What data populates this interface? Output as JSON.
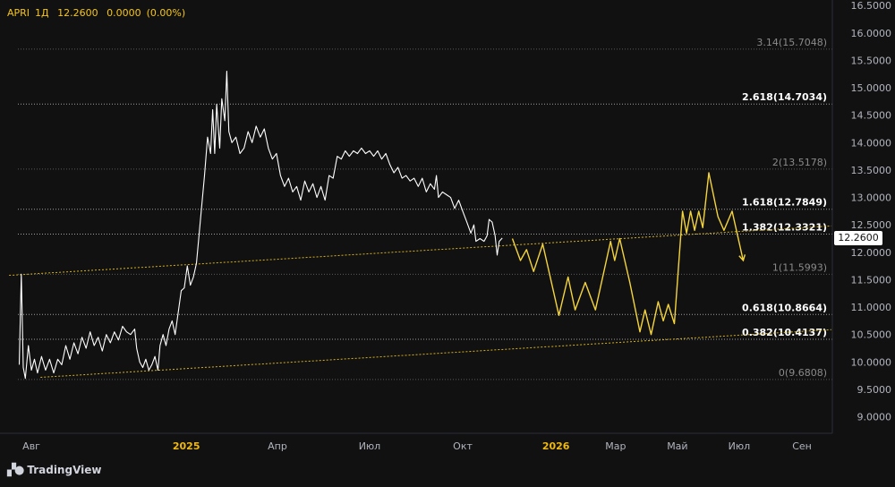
{
  "header": {
    "symbol": "APRI",
    "interval": "1Д",
    "last": "12.2600",
    "change": "0.0000",
    "change_pct": "(0.00%)"
  },
  "branding": {
    "name": "TradingView"
  },
  "current_price_label": "12.2600",
  "colors": {
    "background": "#111112",
    "price_line": "#ffffff",
    "projection": "#f5d53a",
    "trend_line": "#d4b021",
    "fib_line": "#8a8a8a",
    "axis_text": "#b2b5be"
  },
  "chart_data": {
    "type": "line",
    "title": "",
    "xlabel": "",
    "ylabel": "",
    "ylim": [
      8.7,
      16.6
    ],
    "x_tick_labels": [
      {
        "label": "Авг",
        "date": "2024-08-01"
      },
      {
        "label": "2025",
        "date": "2025-01-01",
        "bold": true
      },
      {
        "label": "Апр",
        "date": "2025-04-01"
      },
      {
        "label": "Июл",
        "date": "2025-07-01"
      },
      {
        "label": "Окт",
        "date": "2025-10-01"
      },
      {
        "label": "2026",
        "date": "2026-01-01",
        "bold": true
      },
      {
        "label": "Мар",
        "date": "2026-03-01"
      },
      {
        "label": "Май",
        "date": "2026-05-01"
      },
      {
        "label": "Июл",
        "date": "2026-07-01"
      },
      {
        "label": "Сен",
        "date": "2026-09-01"
      }
    ],
    "y_tick_labels": [
      "16.5000",
      "16.0000",
      "15.5000",
      "15.0000",
      "14.5000",
      "14.0000",
      "13.5000",
      "13.0000",
      "12.5000",
      "12.0000",
      "11.5000",
      "11.0000",
      "10.5000",
      "10.0000",
      "9.5000",
      "9.0000"
    ],
    "y_ticks": [
      16.5,
      16.0,
      15.5,
      15.0,
      14.5,
      14.0,
      13.5,
      13.0,
      12.5,
      12.0,
      11.5,
      11.0,
      10.5,
      10.0,
      9.5,
      9.0
    ],
    "fib_levels": [
      {
        "label": "3.14(15.7048)",
        "value": 15.7048,
        "emphasis": false
      },
      {
        "label": "2.618(14.7034)",
        "value": 14.7034,
        "emphasis": true
      },
      {
        "label": "2(13.5178)",
        "value": 13.5178,
        "emphasis": false
      },
      {
        "label": "1.618(12.7849)",
        "value": 12.7849,
        "emphasis": true
      },
      {
        "label": "1.382(12.3321)",
        "value": 12.3321,
        "emphasis": true
      },
      {
        "label": "1(11.5993)",
        "value": 11.5993,
        "emphasis": false
      },
      {
        "label": "0.618(10.8664)",
        "value": 10.8664,
        "emphasis": true
      },
      {
        "label": "0.382(10.4137)",
        "value": 10.4137,
        "emphasis": true
      },
      {
        "label": "0(9.6808)",
        "value": 9.6808,
        "emphasis": false
      }
    ],
    "series": [
      {
        "kind": "price",
        "points": [
          [
            "2024-07-20",
            9.95
          ],
          [
            "2024-07-22",
            11.6
          ],
          [
            "2024-07-24",
            9.9
          ],
          [
            "2024-07-26",
            9.7
          ],
          [
            "2024-07-29",
            10.3
          ],
          [
            "2024-08-01",
            9.85
          ],
          [
            "2024-08-04",
            10.05
          ],
          [
            "2024-08-07",
            9.8
          ],
          [
            "2024-08-11",
            10.1
          ],
          [
            "2024-08-15",
            9.85
          ],
          [
            "2024-08-19",
            10.05
          ],
          [
            "2024-08-23",
            9.8
          ],
          [
            "2024-08-27",
            10.05
          ],
          [
            "2024-08-31",
            9.95
          ],
          [
            "2024-09-04",
            10.3
          ],
          [
            "2024-09-08",
            10.05
          ],
          [
            "2024-09-12",
            10.35
          ],
          [
            "2024-09-16",
            10.15
          ],
          [
            "2024-09-20",
            10.45
          ],
          [
            "2024-09-24",
            10.25
          ],
          [
            "2024-09-28",
            10.55
          ],
          [
            "2024-10-02",
            10.3
          ],
          [
            "2024-10-06",
            10.45
          ],
          [
            "2024-10-10",
            10.2
          ],
          [
            "2024-10-14",
            10.5
          ],
          [
            "2024-10-18",
            10.35
          ],
          [
            "2024-10-22",
            10.55
          ],
          [
            "2024-10-26",
            10.4
          ],
          [
            "2024-10-30",
            10.65
          ],
          [
            "2024-11-03",
            10.55
          ],
          [
            "2024-11-07",
            10.5
          ],
          [
            "2024-11-11",
            10.6
          ],
          [
            "2024-11-13",
            10.25
          ],
          [
            "2024-11-16",
            10.0
          ],
          [
            "2024-11-19",
            9.9
          ],
          [
            "2024-11-22",
            10.05
          ],
          [
            "2024-11-25",
            9.85
          ],
          [
            "2024-11-28",
            9.95
          ],
          [
            "2024-12-01",
            10.1
          ],
          [
            "2024-12-04",
            9.85
          ],
          [
            "2024-12-06",
            10.3
          ],
          [
            "2024-12-09",
            10.5
          ],
          [
            "2024-12-12",
            10.3
          ],
          [
            "2024-12-15",
            10.6
          ],
          [
            "2024-12-18",
            10.75
          ],
          [
            "2024-12-21",
            10.5
          ],
          [
            "2024-12-24",
            10.9
          ],
          [
            "2024-12-27",
            11.3
          ],
          [
            "2024-12-30",
            11.35
          ],
          [
            "2025-01-02",
            11.75
          ],
          [
            "2025-01-05",
            11.4
          ],
          [
            "2025-01-08",
            11.55
          ],
          [
            "2025-01-11",
            11.8
          ],
          [
            "2025-01-15",
            12.6
          ],
          [
            "2025-01-19",
            13.4
          ],
          [
            "2025-01-22",
            14.1
          ],
          [
            "2025-01-25",
            13.8
          ],
          [
            "2025-01-27",
            14.6
          ],
          [
            "2025-01-29",
            13.8
          ],
          [
            "2025-01-31",
            14.7
          ],
          [
            "2025-02-03",
            13.9
          ],
          [
            "2025-02-05",
            14.8
          ],
          [
            "2025-02-08",
            14.4
          ],
          [
            "2025-02-10",
            15.3
          ],
          [
            "2025-02-12",
            14.2
          ],
          [
            "2025-02-15",
            14.0
          ],
          [
            "2025-02-19",
            14.1
          ],
          [
            "2025-02-23",
            13.8
          ],
          [
            "2025-02-27",
            13.9
          ],
          [
            "2025-03-03",
            14.2
          ],
          [
            "2025-03-07",
            14.0
          ],
          [
            "2025-03-11",
            14.3
          ],
          [
            "2025-03-15",
            14.1
          ],
          [
            "2025-03-19",
            14.25
          ],
          [
            "2025-03-23",
            13.9
          ],
          [
            "2025-03-27",
            13.7
          ],
          [
            "2025-03-31",
            13.8
          ],
          [
            "2025-04-04",
            13.4
          ],
          [
            "2025-04-08",
            13.2
          ],
          [
            "2025-04-12",
            13.35
          ],
          [
            "2025-04-16",
            13.1
          ],
          [
            "2025-04-20",
            13.2
          ],
          [
            "2025-04-24",
            12.95
          ],
          [
            "2025-04-28",
            13.3
          ],
          [
            "2025-05-02",
            13.1
          ],
          [
            "2025-05-06",
            13.25
          ],
          [
            "2025-05-10",
            13.0
          ],
          [
            "2025-05-14",
            13.2
          ],
          [
            "2025-05-18",
            12.95
          ],
          [
            "2025-05-22",
            13.4
          ],
          [
            "2025-05-26",
            13.35
          ],
          [
            "2025-05-30",
            13.75
          ],
          [
            "2025-06-03",
            13.7
          ],
          [
            "2025-06-07",
            13.85
          ],
          [
            "2025-06-11",
            13.75
          ],
          [
            "2025-06-15",
            13.85
          ],
          [
            "2025-06-19",
            13.8
          ],
          [
            "2025-06-23",
            13.9
          ],
          [
            "2025-06-27",
            13.8
          ],
          [
            "2025-07-01",
            13.85
          ],
          [
            "2025-07-05",
            13.75
          ],
          [
            "2025-07-09",
            13.85
          ],
          [
            "2025-07-13",
            13.7
          ],
          [
            "2025-07-17",
            13.8
          ],
          [
            "2025-07-21",
            13.6
          ],
          [
            "2025-07-25",
            13.45
          ],
          [
            "2025-07-29",
            13.55
          ],
          [
            "2025-08-02",
            13.35
          ],
          [
            "2025-08-06",
            13.4
          ],
          [
            "2025-08-10",
            13.3
          ],
          [
            "2025-08-14",
            13.35
          ],
          [
            "2025-08-18",
            13.2
          ],
          [
            "2025-08-22",
            13.35
          ],
          [
            "2025-08-26",
            13.1
          ],
          [
            "2025-08-30",
            13.25
          ],
          [
            "2025-09-03",
            13.15
          ],
          [
            "2025-09-05",
            13.4
          ],
          [
            "2025-09-07",
            13.0
          ],
          [
            "2025-09-11",
            13.1
          ],
          [
            "2025-09-15",
            13.05
          ],
          [
            "2025-09-19",
            13.0
          ],
          [
            "2025-09-23",
            12.8
          ],
          [
            "2025-09-27",
            12.95
          ],
          [
            "2025-10-01",
            12.75
          ],
          [
            "2025-10-05",
            12.55
          ],
          [
            "2025-10-09",
            12.35
          ],
          [
            "2025-10-12",
            12.5
          ],
          [
            "2025-10-14",
            12.2
          ],
          [
            "2025-10-18",
            12.25
          ],
          [
            "2025-10-22",
            12.2
          ],
          [
            "2025-10-25",
            12.3
          ],
          [
            "2025-10-27",
            12.6
          ],
          [
            "2025-10-30",
            12.55
          ],
          [
            "2025-11-02",
            12.3
          ],
          [
            "2025-11-04",
            11.95
          ],
          [
            "2025-11-06",
            12.2
          ],
          [
            "2025-11-09",
            12.26
          ]
        ]
      },
      {
        "kind": "projection",
        "points": [
          [
            "2025-11-19",
            12.25
          ],
          [
            "2025-11-27",
            11.85
          ],
          [
            "2025-12-03",
            12.05
          ],
          [
            "2025-12-10",
            11.65
          ],
          [
            "2025-12-19",
            12.15
          ],
          [
            "2026-01-04",
            10.85
          ],
          [
            "2026-01-13",
            11.55
          ],
          [
            "2026-01-20",
            10.95
          ],
          [
            "2026-01-30",
            11.45
          ],
          [
            "2026-02-09",
            10.95
          ],
          [
            "2026-02-24",
            12.2
          ],
          [
            "2026-02-28",
            11.85
          ],
          [
            "2026-03-05",
            12.25
          ],
          [
            "2026-03-15",
            11.45
          ],
          [
            "2026-03-25",
            10.55
          ],
          [
            "2026-03-30",
            10.95
          ],
          [
            "2026-04-05",
            10.5
          ],
          [
            "2026-04-12",
            11.1
          ],
          [
            "2026-04-17",
            10.75
          ],
          [
            "2026-04-22",
            11.05
          ],
          [
            "2026-04-28",
            10.7
          ],
          [
            "2026-05-06",
            12.75
          ],
          [
            "2026-05-10",
            12.35
          ],
          [
            "2026-05-14",
            12.75
          ],
          [
            "2026-05-18",
            12.4
          ],
          [
            "2026-05-22",
            12.75
          ],
          [
            "2026-05-26",
            12.45
          ],
          [
            "2026-06-01",
            13.45
          ],
          [
            "2026-06-10",
            12.65
          ],
          [
            "2026-06-16",
            12.4
          ],
          [
            "2026-06-24",
            12.75
          ],
          [
            "2026-07-05",
            11.85
          ]
        ]
      }
    ],
    "trend_lines": [
      {
        "from": [
          "2024-07-10",
          11.58
        ],
        "to": [
          "2026-09-30",
          12.48
        ]
      },
      {
        "from": [
          "2024-08-10",
          9.72
        ],
        "to": [
          "2026-09-30",
          10.59
        ]
      }
    ]
  }
}
